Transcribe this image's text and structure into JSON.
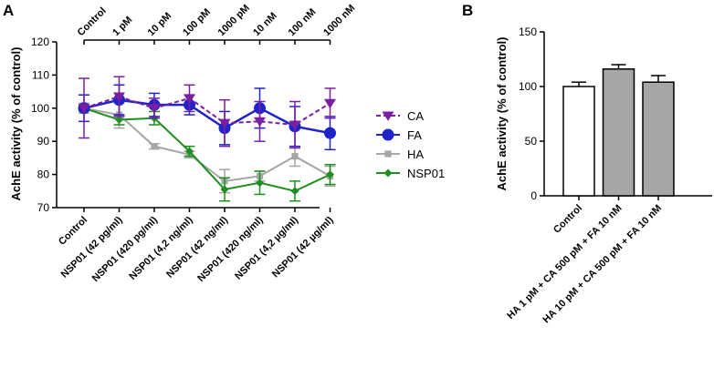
{
  "panel_labels": {
    "a": "A",
    "b": "B"
  },
  "chart_data": [
    {
      "type": "line",
      "panel": "A",
      "ylabel": "AchE activity (% of control)",
      "ylim": [
        70,
        120
      ],
      "yticks": [
        70,
        80,
        90,
        100,
        110,
        120
      ],
      "categories": [
        "Control",
        "NSP01 (42 pg/ml)",
        "NSP01 (420 pg/ml)",
        "NSP01 (4,2 ng/ml)",
        "NSP01 (42 ng/ml)",
        "NSP01 (420 ng/ml)",
        "NSP01 (4,2 µg/ml)",
        "NSP01 (42 µg/ml)"
      ],
      "top_labels": [
        "Control",
        "1 pM",
        "10 pM",
        "100 pM",
        "1000 pM",
        "10 nM",
        "100 nM",
        "1000 nM"
      ],
      "series": [
        {
          "name": "CA",
          "color": "#7b1fa2",
          "marker": "triangle-down",
          "dash": true,
          "values": [
            100,
            103.5,
            100,
            103,
            95.5,
            96,
            95,
            101.5
          ],
          "errors": [
            9,
            6,
            3,
            4,
            7,
            6,
            7,
            4.5
          ]
        },
        {
          "name": "FA",
          "color": "#1f23c8",
          "marker": "circle",
          "dash": false,
          "values": [
            100,
            102.5,
            101,
            101,
            94,
            100,
            94.5,
            92.5
          ],
          "errors": [
            4,
            4.5,
            3.5,
            3,
            5,
            6,
            6,
            5
          ]
        },
        {
          "name": "HA",
          "color": "#a6a6a6",
          "marker": "square",
          "dash": false,
          "values": [
            100,
            98,
            88.5,
            86,
            78,
            79.5,
            85.5,
            79.5
          ],
          "errors": [
            1.5,
            4,
            0.8,
            1,
            3.5,
            1.5,
            3,
            3
          ]
        },
        {
          "name": "NSP01",
          "color": "#1e8e1e",
          "marker": "diamond",
          "dash": false,
          "values": [
            100,
            96.5,
            97,
            87,
            75.5,
            77.5,
            75,
            80
          ],
          "errors": [
            0.8,
            1.5,
            2,
            1.5,
            3.5,
            3.5,
            3,
            3
          ]
        }
      ],
      "legend": [
        "CA",
        "FA",
        "HA",
        "NSP01"
      ]
    },
    {
      "type": "bar",
      "panel": "B",
      "ylabel": "AchE activity (% of control)",
      "ylim": [
        0,
        150
      ],
      "yticks": [
        0,
        50,
        100,
        150
      ],
      "categories": [
        "Control",
        "HA 1 pM + CA 500 pM + FA 10 nM",
        "HA 10 pM + CA 500 pM + FA 10 nM"
      ],
      "values": [
        100,
        116,
        104
      ],
      "errors": [
        4,
        4,
        6
      ],
      "fills": [
        "#ffffff",
        "#a6a6a6",
        "#a6a6a6"
      ]
    }
  ]
}
